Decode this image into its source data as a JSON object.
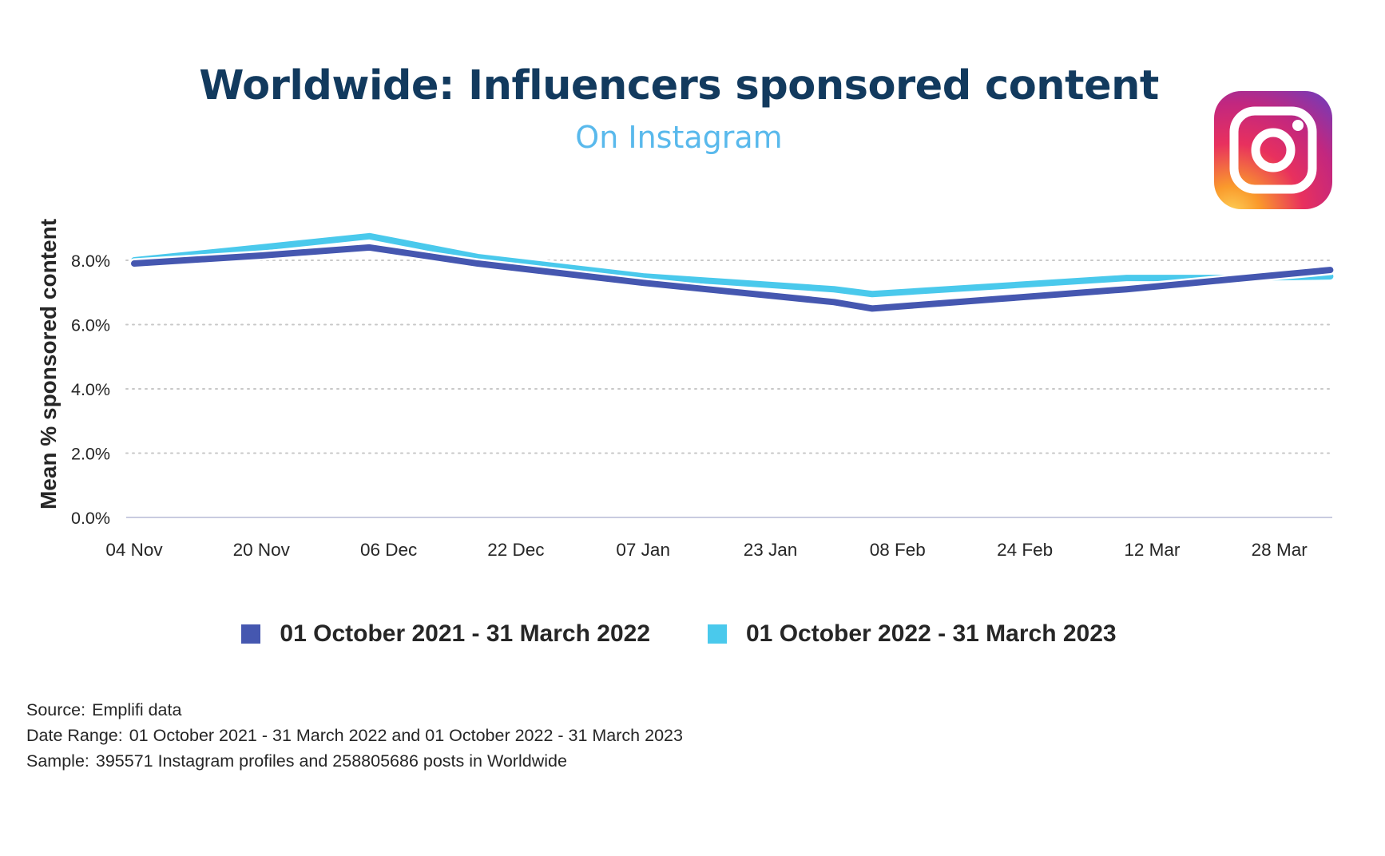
{
  "title": "Worldwide: Influencers sponsored content",
  "subtitle": "On Instagram",
  "logo": {
    "icon": "instagram-logo-icon"
  },
  "chart_data": {
    "type": "line",
    "ylabel": "Mean % sponsored content",
    "xlabel": "",
    "ylim": [
      0,
      9
    ],
    "yticks": [
      0,
      2,
      4,
      6,
      8
    ],
    "ytick_labels": [
      "0.0%",
      "2.0%",
      "4.0%",
      "6.0%",
      "8.0%"
    ],
    "grid": "horizontal-dotted",
    "x_tick_labels": [
      "04 Nov",
      "20 Nov",
      "06 Dec",
      "22 Dec",
      "07 Jan",
      "23 Jan",
      "08 Feb",
      "24 Feb",
      "12 Mar",
      "28 Mar"
    ],
    "x_range_index": [
      0,
      9.45
    ],
    "series": [
      {
        "name": "01 October 2021 - 31 March 2022",
        "color": "#4557b0",
        "x": [
          0,
          1,
          1.85,
          2.7,
          4,
          5.5,
          5.8,
          6.8,
          7.8,
          8.6,
          9.4
        ],
        "values": [
          7.9,
          8.15,
          8.4,
          7.9,
          7.3,
          6.7,
          6.5,
          6.8,
          7.1,
          7.4,
          7.7
        ]
      },
      {
        "name": "01 October 2022 - 31 March 2023",
        "color": "#4ac9ec",
        "x": [
          0,
          1,
          1.85,
          2.7,
          4,
          5.5,
          5.8,
          6.8,
          7.8,
          8.6,
          9.4
        ],
        "values": [
          8.0,
          8.4,
          8.75,
          8.1,
          7.5,
          7.1,
          6.95,
          7.2,
          7.45,
          7.45,
          7.5
        ]
      }
    ],
    "legend": "bottom-center"
  },
  "legend_items": [
    {
      "label": "01 October 2021 - 31 March 2022",
      "color": "#4557b0"
    },
    {
      "label": "01 October 2022 - 31 March 2023",
      "color": "#4ac9ec"
    }
  ],
  "footer": {
    "source_key": "Source:",
    "source_val": "Emplifi data",
    "range_key": "Date Range:",
    "range_val": "01 October 2021 - 31 March 2022 and 01 October 2022 - 31 March 2023",
    "sample_key": "Sample:",
    "sample_val": "395571 Instagram profiles and 258805686 posts in Worldwide"
  }
}
